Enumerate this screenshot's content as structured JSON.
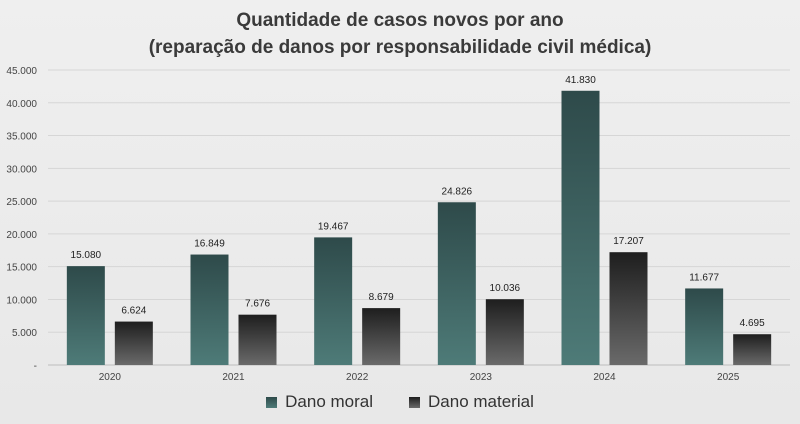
{
  "chart_data": {
    "type": "bar",
    "title_line1": "Quantidade de casos novos por ano",
    "title_line2": "(reparação de danos por responsabilidade civil médica)",
    "categories": [
      "2020",
      "2021",
      "2022",
      "2023",
      "2024",
      "2025"
    ],
    "series": [
      {
        "name": "Dano moral",
        "values": [
          15080,
          16849,
          19467,
          24826,
          41830,
          11677
        ],
        "labels": [
          "15.080",
          "16.849",
          "19.467",
          "24.826",
          "41.830",
          "11.677"
        ],
        "color_top": "#2e4a4a",
        "color_bottom": "#4e7b78"
      },
      {
        "name": "Dano material",
        "values": [
          6624,
          7676,
          8679,
          10036,
          17207,
          4695
        ],
        "labels": [
          "6.624",
          "7.676",
          "8.679",
          "10.036",
          "17.207",
          "4.695"
        ],
        "color_top": "#1e1e1e",
        "color_bottom": "#6a6a6a"
      }
    ],
    "yticks": [
      0,
      5000,
      10000,
      15000,
      20000,
      25000,
      30000,
      35000,
      40000,
      45000
    ],
    "ytick_labels": [
      "-",
      "5.000",
      "10.000",
      "15.000",
      "20.000",
      "25.000",
      "30.000",
      "35.000",
      "40.000",
      "45.000"
    ],
    "ylim": [
      0,
      45000
    ],
    "grid": true,
    "legend_position": "bottom"
  }
}
